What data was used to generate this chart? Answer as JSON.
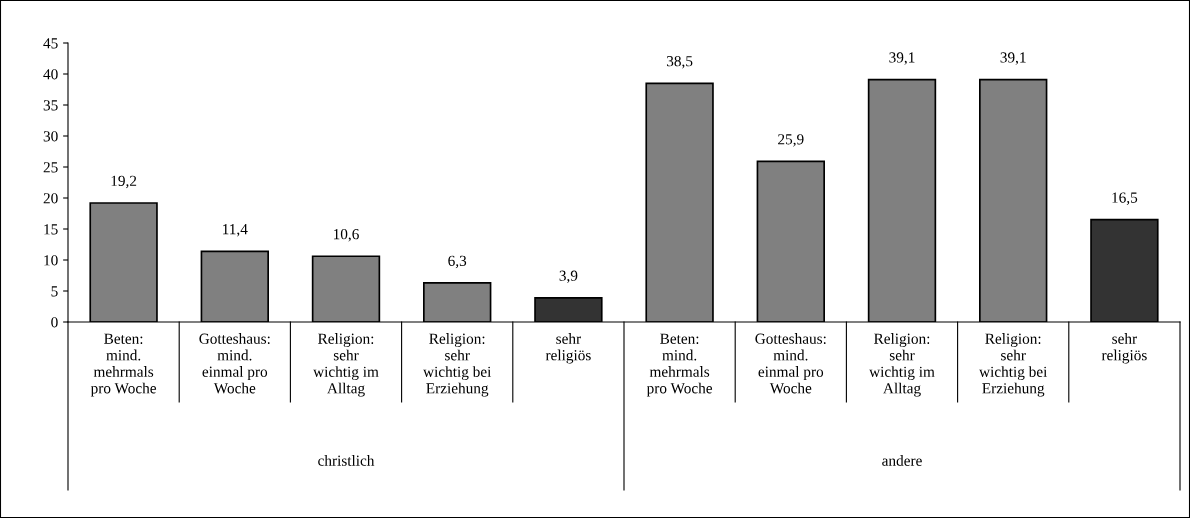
{
  "chart_data": {
    "type": "bar",
    "categories": [
      "Beten:\nmind.\nmehrmals\npro Woche",
      "Gotteshaus:\nmind.\neinmal pro\nWoche",
      "Religion:\nsehr\nwichtig im\nAlltag",
      "Religion:\nsehr\nwichtig bei\nErziehung",
      "sehr\nreligiös",
      "Beten:\nmind.\nmehrmals\npro Woche",
      "Gotteshaus:\nmind.\neinmal pro\nWoche",
      "Religion:\nsehr\nwichtig im\nAlltag",
      "Religion:\nsehr\nwichtig bei\nErziehung",
      "sehr\nreligiös"
    ],
    "values": [
      19.2,
      11.4,
      10.6,
      6.3,
      3.9,
      38.5,
      25.9,
      39.1,
      39.1,
      16.5
    ],
    "value_labels": [
      "19,2",
      "11,4",
      "10,6",
      "6,3",
      "3,9",
      "38,5",
      "25,9",
      "39,1",
      "39,1",
      "16,5"
    ],
    "colors": [
      "#808080",
      "#808080",
      "#808080",
      "#808080",
      "#333333",
      "#808080",
      "#808080",
      "#808080",
      "#808080",
      "#333333"
    ],
    "annotations": [
      "christlich",
      "andere"
    ],
    "ylim": [
      0,
      45
    ],
    "yticks": [
      0,
      5,
      10,
      15,
      20,
      25,
      30,
      35,
      40,
      45
    ],
    "grid": false,
    "legend": false
  }
}
